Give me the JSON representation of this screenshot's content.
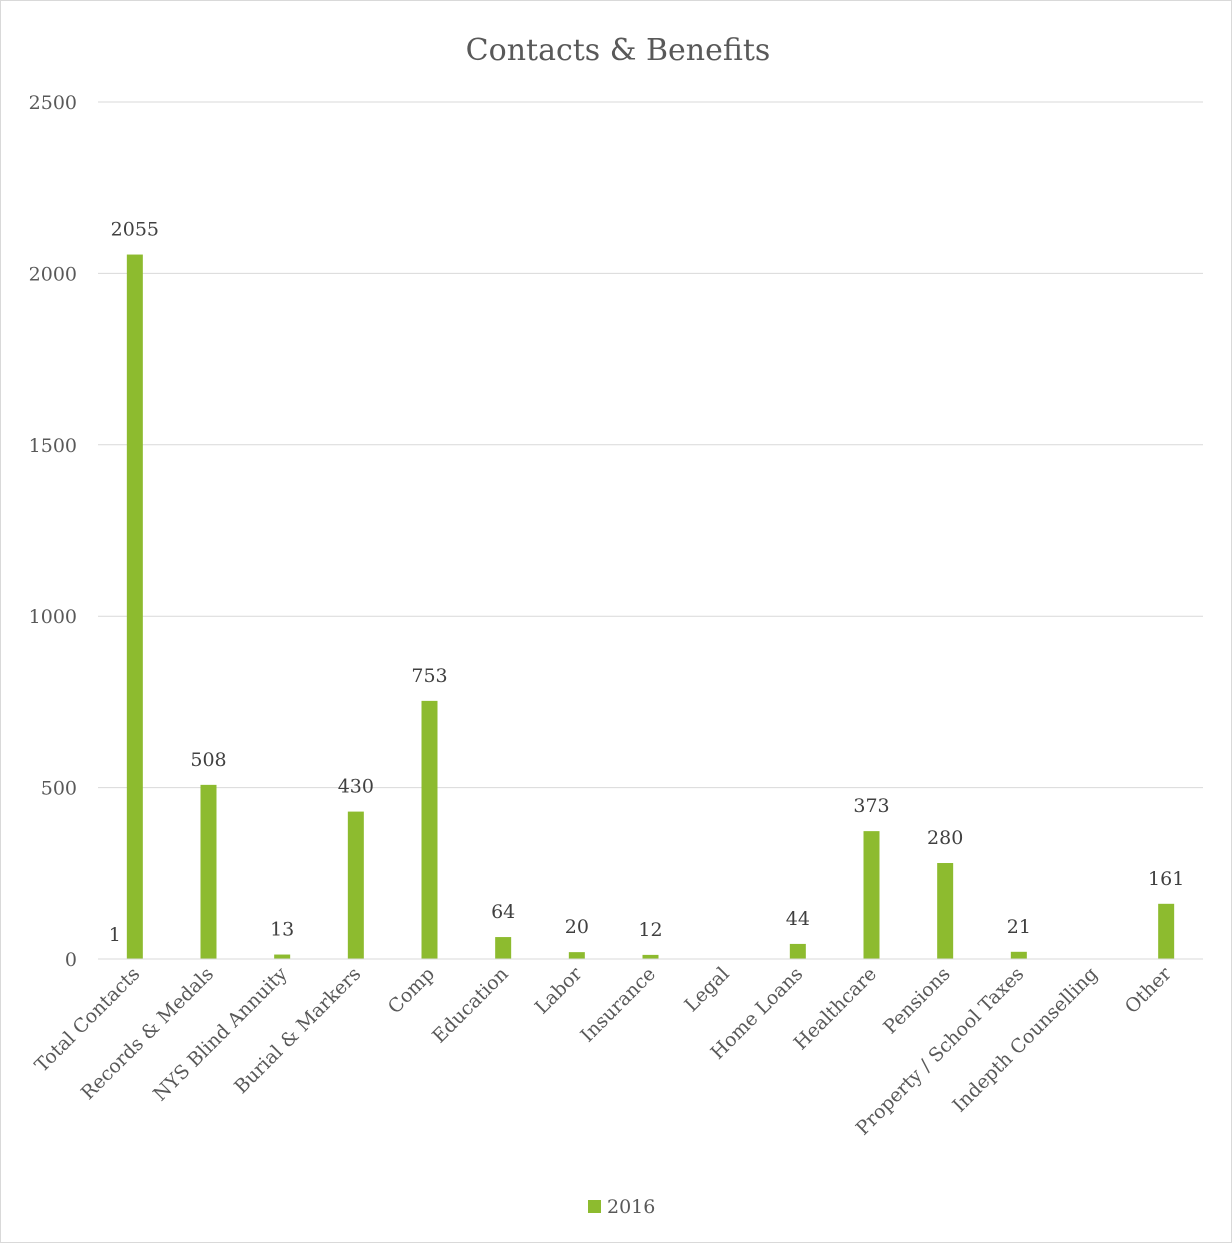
{
  "chart_data": {
    "type": "bar",
    "title": "Contacts & Benefits",
    "categories": [
      "Total Contacts",
      "Records & Medals",
      "NYS Blind Annuity",
      "Burial & Markers",
      "Comp",
      "Education",
      "Labor",
      "Insurance",
      "Legal",
      "Home Loans",
      "Healthcare",
      "Pensions",
      "Property / School Taxes",
      "Indepth Counselling",
      "Other"
    ],
    "series": [
      {
        "name": "2016",
        "color": "#8dbb2f",
        "values": [
          2055,
          508,
          13,
          430,
          753,
          64,
          20,
          12,
          0,
          44,
          373,
          280,
          21,
          0,
          161
        ],
        "labels": [
          "2055",
          "508",
          "13",
          "430",
          "753",
          "64",
          "20",
          "12",
          "",
          "44",
          "373",
          "280",
          "21",
          "",
          "161"
        ]
      }
    ],
    "extra_annotation": "1",
    "ylim": [
      0,
      2500
    ],
    "yticks": [
      0,
      500,
      1000,
      1500,
      2000,
      2500
    ],
    "ytick_labels": [
      "0",
      "500",
      "1000",
      "1500",
      "2000",
      "2500"
    ],
    "grid": true,
    "legend": "bottom",
    "xlabel": "",
    "ylabel": ""
  }
}
